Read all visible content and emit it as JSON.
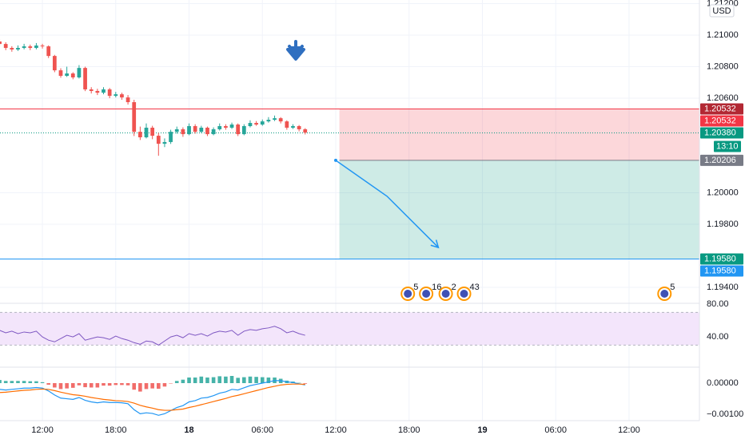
{
  "chart_data": [
    {
      "type": "candlestick",
      "currency": "USD",
      "x": [
        -3.5,
        -3,
        -2.5,
        -2,
        -1.5,
        -1,
        -0.5,
        0,
        0.5,
        1,
        1.5,
        2,
        2.5,
        3,
        3.5,
        4,
        4.5,
        5,
        5.5,
        6,
        6.5,
        7,
        7.5,
        8,
        8.5,
        9,
        9.5,
        10,
        10.5,
        11,
        11.5,
        12,
        12.5,
        13,
        13.5,
        14,
        14.5,
        15,
        15.5,
        16,
        16.5,
        17,
        17.5,
        18,
        18.5,
        19,
        19.5,
        20,
        20.5,
        21,
        21.5
      ],
      "open": [
        1.2096,
        1.20944,
        1.20919,
        1.20909,
        1.20919,
        1.20929,
        1.20919,
        1.20934,
        1.20929,
        1.20868,
        1.20777,
        1.20742,
        1.20757,
        1.20732,
        1.20792,
        1.20656,
        1.20646,
        1.20635,
        1.20656,
        1.20615,
        1.20625,
        1.20605,
        1.20575,
        1.20387,
        1.20352,
        1.20413,
        1.20362,
        1.20311,
        1.20322,
        1.20387,
        1.20403,
        1.20372,
        1.20423,
        1.20387,
        1.20413,
        1.20372,
        1.20403,
        1.20423,
        1.20413,
        1.20433,
        1.20372,
        1.20423,
        1.20443,
        1.20433,
        1.20453,
        1.20463,
        1.20473,
        1.20453,
        1.20413,
        1.20423,
        1.20403
      ],
      "high": [
        1.20975,
        1.20955,
        1.2093,
        1.20935,
        1.20945,
        1.2094,
        1.2095,
        1.20945,
        1.20935,
        1.20875,
        1.2079,
        1.208,
        1.20765,
        1.2081,
        1.208,
        1.2067,
        1.2066,
        1.2067,
        1.20665,
        1.2064,
        1.20635,
        1.2062,
        1.2059,
        1.2042,
        1.2044,
        1.20425,
        1.2038,
        1.20345,
        1.204,
        1.2042,
        1.20415,
        1.2044,
        1.20435,
        1.20425,
        1.2042,
        1.20415,
        1.2044,
        1.20435,
        1.20445,
        1.2044,
        1.20435,
        1.2046,
        1.20455,
        1.20465,
        1.2048,
        1.2049,
        1.2048,
        1.2046,
        1.20435,
        1.2043,
        1.2041
      ],
      "low": [
        1.2093,
        1.20905,
        1.20895,
        1.209,
        1.2091,
        1.20905,
        1.2091,
        1.20915,
        1.20855,
        1.20765,
        1.2073,
        1.20735,
        1.2072,
        1.20725,
        1.20645,
        1.2063,
        1.2062,
        1.20625,
        1.206,
        1.20605,
        1.2059,
        1.2056,
        1.2036,
        1.20335,
        1.20345,
        1.2034,
        1.20235,
        1.2029,
        1.2031,
        1.20375,
        1.20355,
        1.20365,
        1.20375,
        1.2038,
        1.2036,
        1.20365,
        1.20395,
        1.204,
        1.20405,
        1.2036,
        1.20365,
        1.20415,
        1.20425,
        1.20425,
        1.20445,
        1.20455,
        1.2044,
        1.204,
        1.20405,
        1.2039,
        1.2037
      ],
      "close": [
        1.20944,
        1.20919,
        1.20909,
        1.20919,
        1.20929,
        1.20919,
        1.20934,
        1.20929,
        1.20868,
        1.20777,
        1.20742,
        1.20757,
        1.20732,
        1.20792,
        1.20656,
        1.20646,
        1.20635,
        1.20656,
        1.20615,
        1.20625,
        1.20605,
        1.20575,
        1.20387,
        1.20352,
        1.20413,
        1.20362,
        1.20311,
        1.20322,
        1.20387,
        1.20403,
        1.20372,
        1.20423,
        1.20387,
        1.20413,
        1.20372,
        1.20403,
        1.20423,
        1.20413,
        1.20433,
        1.20372,
        1.20423,
        1.20443,
        1.20433,
        1.20453,
        1.20463,
        1.20473,
        1.20453,
        1.20413,
        1.20423,
        1.20403,
        1.20382
      ],
      "up_color": "#26a69a",
      "down_color": "#ef5350",
      "xlim": [
        -3.47,
        53.76
      ],
      "xticks": [
        {
          "value": 0,
          "label": "12:00"
        },
        {
          "value": 6,
          "label": "18:00"
        },
        {
          "value": 12,
          "label": "18"
        },
        {
          "value": 18,
          "label": "06:00"
        },
        {
          "value": 24,
          "label": "12:00"
        },
        {
          "value": 30,
          "label": "18:00"
        },
        {
          "value": 36,
          "label": "19"
        },
        {
          "value": 42,
          "label": "06:00"
        },
        {
          "value": 48,
          "label": "12:00"
        }
      ],
      "ylim": [
        1.19299,
        1.21223
      ],
      "yticks": [
        {
          "value": 1.212,
          "label": "1.21200"
        },
        {
          "value": 1.21,
          "label": "1.21000"
        },
        {
          "value": 1.208,
          "label": "1.20800"
        },
        {
          "value": 1.206,
          "label": "1.20600"
        },
        {
          "value": 1.2,
          "label": "1.20000"
        },
        {
          "value": 1.198,
          "label": "1.19800"
        },
        {
          "value": 1.194,
          "label": "1.19400"
        }
      ],
      "price_lines": [
        {
          "value": 1.20532,
          "color": "#f23645",
          "style": "solid"
        },
        {
          "value": 1.2038,
          "color": "#089981",
          "style": "dotted"
        },
        {
          "value": 1.1958,
          "color": "#2196f3",
          "style": "solid"
        }
      ],
      "position": {
        "start": 24.3,
        "entry": 1.20206,
        "stop": 1.20532,
        "target": 1.1958
      },
      "arrow": {
        "x": [
          24.0,
          28.2,
          32.4
        ],
        "y": [
          1.20206,
          1.19978,
          1.19653
        ],
        "color": "#2196f3"
      },
      "events": [
        {
          "x": 29.9,
          "label": "5"
        },
        {
          "x": 31.4,
          "label": "16"
        },
        {
          "x": 33.0,
          "label": "2"
        },
        {
          "x": 34.5,
          "label": "43"
        },
        {
          "x": 50.9,
          "label": "5"
        }
      ],
      "axis_labels": [
        {
          "value": 1.20532,
          "label": "1.20532",
          "color": "#b22833"
        },
        {
          "value": 1.20532,
          "label": "1.20532",
          "color": "#f23645"
        },
        {
          "value": 1.2038,
          "label": "1.20380",
          "color": "#089981"
        },
        {
          "label": "13:10",
          "color": "#089981"
        },
        {
          "value": 1.20206,
          "label": "1.20206",
          "color": "#787b86"
        },
        {
          "value": 1.1958,
          "label": "1.19580",
          "color": "#089981"
        },
        {
          "value": 1.1958,
          "label": "1.19580",
          "color": "#2196f3"
        }
      ]
    },
    {
      "type": "line",
      "color": "#7e57c2",
      "values": [
        48,
        45,
        47,
        44,
        46,
        45,
        47,
        40,
        36,
        34,
        38,
        42,
        40,
        44,
        36,
        38,
        40,
        39,
        37,
        41,
        38,
        36,
        33,
        31,
        35,
        34,
        30,
        35,
        40,
        42,
        39,
        44,
        42,
        44,
        41,
        45,
        47,
        46,
        48,
        42,
        47,
        49,
        48,
        50,
        51,
        53,
        50,
        45,
        47,
        44,
        42
      ],
      "ylim": [
        5,
        83
      ],
      "yticks": [
        {
          "value": 80,
          "label": "80.00"
        },
        {
          "value": 40,
          "label": "40.00"
        }
      ],
      "band": [
        30,
        70
      ],
      "band_color": "#f3e5fb"
    },
    {
      "type": "macd",
      "histogram": {
        "positive_color": "#26a69a",
        "negative_color": "#ef5350",
        "values": [
          0.0001,
          7e-05,
          7e-05,
          7e-05,
          7e-05,
          6e-05,
          6e-05,
          3e-05,
          -5e-05,
          -0.00014,
          -0.00019,
          -0.00017,
          -0.00015,
          -7e-05,
          -0.00013,
          -0.00014,
          -0.00014,
          -8e-05,
          -8e-05,
          -6e-05,
          -6e-05,
          -7e-05,
          -0.00021,
          -0.00027,
          -0.00019,
          -0.00017,
          -0.00018,
          -0.00011,
          -1e-05,
          7e-05,
          0.00011,
          0.00018,
          0.00018,
          0.00021,
          0.00018,
          0.00019,
          0.00022,
          0.00021,
          0.00023,
          0.00017,
          0.00019,
          0.00021,
          0.0002,
          0.00019,
          0.00018,
          0.00018,
          0.00014,
          8e-05,
          5e-05,
          1e-05,
          -2e-05
        ]
      },
      "lines": [
        {
          "color": "#2196f3",
          "values": [
            -0.0002,
            -0.00022,
            -0.0002,
            -0.00018,
            -0.00016,
            -0.00016,
            -0.00014,
            -0.00016,
            -0.00025,
            -0.00038,
            -0.00048,
            -0.0005,
            -0.00052,
            -0.00046,
            -0.00055,
            -0.0006,
            -0.00063,
            -0.0006,
            -0.00062,
            -0.00062,
            -0.00063,
            -0.00066,
            -0.00085,
            -0.00098,
            -0.00095,
            -0.00097,
            -0.00103,
            -0.00098,
            -0.00088,
            -0.00078,
            -0.00072,
            -0.0006,
            -0.00056,
            -0.00048,
            -0.00046,
            -0.0004,
            -0.00032,
            -0.00028,
            -0.0002,
            -0.00022,
            -0.00015,
            -8e-05,
            -4e-05,
            0,
            4e-05,
            8e-05,
            8e-05,
            4e-05,
            2e-05,
            -2e-05,
            -6e-05
          ]
        },
        {
          "color": "#ff6d00",
          "values": [
            -0.0003,
            -0.00029,
            -0.00027,
            -0.00025,
            -0.00023,
            -0.00022,
            -0.0002,
            -0.00019,
            -0.0002,
            -0.00024,
            -0.00029,
            -0.00033,
            -0.00037,
            -0.00039,
            -0.00042,
            -0.00046,
            -0.00049,
            -0.00052,
            -0.00054,
            -0.00056,
            -0.00057,
            -0.00059,
            -0.00064,
            -0.00071,
            -0.00076,
            -0.0008,
            -0.00085,
            -0.00087,
            -0.00087,
            -0.00085,
            -0.00083,
            -0.00078,
            -0.00074,
            -0.00069,
            -0.00064,
            -0.00059,
            -0.00054,
            -0.00049,
            -0.00043,
            -0.00039,
            -0.00034,
            -0.00029,
            -0.00024,
            -0.00019,
            -0.00014,
            -0.0001,
            -6e-05,
            -4e-05,
            -3e-05,
            -3e-05,
            -4e-05
          ]
        }
      ],
      "ylim": [
        -0.00115,
        0.00046
      ],
      "yticks": [
        {
          "value": 0,
          "label": "0.00000"
        },
        {
          "value": -0.001,
          "label": "−0.00100"
        }
      ]
    }
  ]
}
